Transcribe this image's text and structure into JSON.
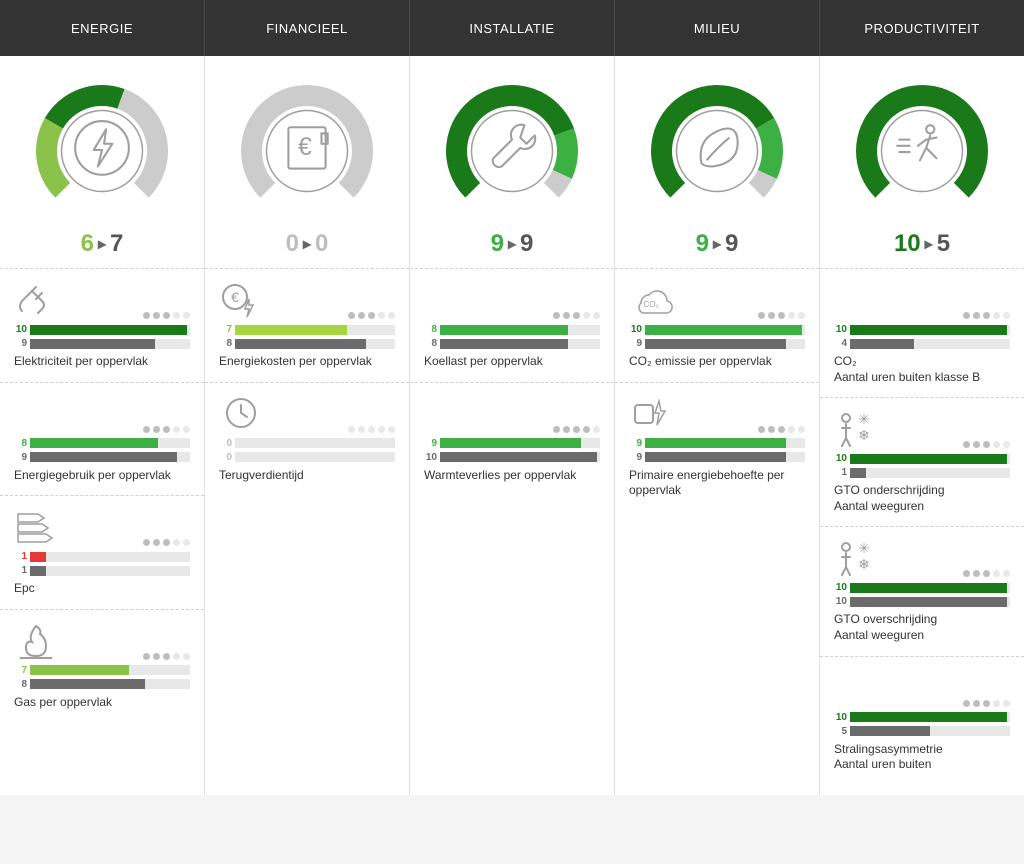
{
  "palette": {
    "dark_green": "#1a7a1a",
    "green": "#3cb043",
    "light_green": "#8bc34a",
    "lime": "#a5d63f",
    "gray": "#9e9e9e",
    "dark_gray": "#6b6b6b",
    "light_gray": "#cccccc",
    "track": "#e8e8e8",
    "red": "#e53935",
    "text_green": "#3cb043",
    "text_gray": "#9e9e9e",
    "text_dark": "#555555"
  },
  "columns": [
    {
      "title": "ENERGIE",
      "icon": "bolt-circle",
      "gauge": {
        "segments": [
          {
            "color": "#8bc34a",
            "start": 225,
            "end": 300
          },
          {
            "color": "#1a7a1a",
            "start": 300,
            "end": 380
          },
          {
            "color": "#cccccc",
            "start": 20,
            "end": 135
          }
        ]
      },
      "score_a": "6",
      "score_a_color": "#8bc34a",
      "score_b": "7",
      "score_b_color": "#555555",
      "metrics": [
        {
          "icon": "plug",
          "dots_fill": 3,
          "a": "10",
          "a_color": "#1a7a1a",
          "a_fill": 0.98,
          "a_bg": "#1a7a1a",
          "b": "9",
          "b_color": "#6b6b6b",
          "b_fill": 0.78,
          "b_bg": "#6b6b6b",
          "label": "Elektriciteit per oppervlak"
        },
        {
          "icon": "none",
          "dots_fill": 3,
          "a": "8",
          "a_color": "#3cb043",
          "a_fill": 0.8,
          "a_bg": "#3cb043",
          "b": "9",
          "b_color": "#6b6b6b",
          "b_fill": 0.92,
          "b_bg": "#6b6b6b",
          "label": "Energiegebruik per oppervlak"
        },
        {
          "icon": "energy-label",
          "dots_fill": 3,
          "a": "1",
          "a_color": "#e53935",
          "a_fill": 0.1,
          "a_bg": "#e53935",
          "b": "1",
          "b_color": "#6b6b6b",
          "b_fill": 0.1,
          "b_bg": "#6b6b6b",
          "label": "Epc"
        },
        {
          "icon": "flame",
          "dots_fill": 3,
          "a": "7",
          "a_color": "#8bc34a",
          "a_fill": 0.62,
          "a_bg": "#8bc34a",
          "b": "8",
          "b_color": "#6b6b6b",
          "b_fill": 0.72,
          "b_bg": "#6b6b6b",
          "label": "Gas per oppervlak"
        }
      ]
    },
    {
      "title": "FINANCIEEL",
      "icon": "euro-box",
      "gauge": {
        "segments": [
          {
            "color": "#cccccc",
            "start": 225,
            "end": 495
          }
        ]
      },
      "score_a": "0",
      "score_a_color": "#bdbdbd",
      "score_b": "0",
      "score_b_color": "#bdbdbd",
      "metrics": [
        {
          "icon": "euro-bolt",
          "dots_fill": 3,
          "a": "7",
          "a_color": "#8bc34a",
          "a_fill": 0.7,
          "a_bg": "#a5d63f",
          "b": "8",
          "b_color": "#6b6b6b",
          "b_fill": 0.82,
          "b_bg": "#6b6b6b",
          "label": "Energiekosten per oppervlak"
        },
        {
          "icon": "clock",
          "dots_fill": 0,
          "a": "0",
          "a_color": "#bdbdbd",
          "a_fill": 0.0,
          "a_bg": "#cccccc",
          "b": "0",
          "b_color": "#bdbdbd",
          "b_fill": 0.0,
          "b_bg": "#cccccc",
          "label": "Terugverdientijd"
        }
      ]
    },
    {
      "title": "INSTALLATIE",
      "icon": "wrench",
      "gauge": {
        "segments": [
          {
            "color": "#1a7a1a",
            "start": 225,
            "end": 430
          },
          {
            "color": "#3cb043",
            "start": 430,
            "end": 475
          },
          {
            "color": "#cccccc",
            "start": 115,
            "end": 135
          }
        ]
      },
      "score_a": "9",
      "score_a_color": "#3cb043",
      "score_b": "9",
      "score_b_color": "#555555",
      "metrics": [
        {
          "icon": "none",
          "dots_fill": 3,
          "a": "8",
          "a_color": "#3cb043",
          "a_fill": 0.8,
          "a_bg": "#3cb043",
          "b": "8",
          "b_color": "#6b6b6b",
          "b_fill": 0.8,
          "b_bg": "#6b6b6b",
          "label": "Koellast per oppervlak"
        },
        {
          "icon": "none",
          "dots_fill": 4,
          "a": "9",
          "a_color": "#3cb043",
          "a_fill": 0.88,
          "a_bg": "#3cb043",
          "b": "10",
          "b_color": "#6b6b6b",
          "b_fill": 0.98,
          "b_bg": "#6b6b6b",
          "label": "Warmteverlies per oppervlak"
        }
      ]
    },
    {
      "title": "MILIEU",
      "icon": "leaf",
      "gauge": {
        "segments": [
          {
            "color": "#1a7a1a",
            "start": 225,
            "end": 420
          },
          {
            "color": "#3cb043",
            "start": 420,
            "end": 475
          },
          {
            "color": "#cccccc",
            "start": 115,
            "end": 135
          }
        ]
      },
      "score_a": "9",
      "score_a_color": "#3cb043",
      "score_b": "9",
      "score_b_color": "#555555",
      "metrics": [
        {
          "icon": "co2",
          "dots_fill": 3,
          "a": "10",
          "a_color": "#1a7a1a",
          "a_fill": 0.98,
          "a_bg": "#3cb043",
          "b": "9",
          "b_color": "#6b6b6b",
          "b_fill": 0.88,
          "b_bg": "#6b6b6b",
          "label": "CO₂ emissie per oppervlak"
        },
        {
          "icon": "bolt-plug",
          "dots_fill": 3,
          "a": "9",
          "a_color": "#3cb043",
          "a_fill": 0.88,
          "a_bg": "#3cb043",
          "b": "9",
          "b_color": "#6b6b6b",
          "b_fill": 0.88,
          "b_bg": "#6b6b6b",
          "label": "Primaire energiebehoefte per oppervlak"
        }
      ]
    },
    {
      "title": "PRODUCTIVITEIT",
      "icon": "walk",
      "gauge": {
        "segments": [
          {
            "color": "#1a7a1a",
            "start": 225,
            "end": 495
          }
        ]
      },
      "score_a": "10",
      "score_a_color": "#1a7a1a",
      "score_b": "5",
      "score_b_color": "#555555",
      "metrics": [
        {
          "icon": "none",
          "dots_fill": 3,
          "a": "10",
          "a_color": "#1a7a1a",
          "a_fill": 0.98,
          "a_bg": "#1a7a1a",
          "b": "4",
          "b_color": "#6b6b6b",
          "b_fill": 0.4,
          "b_bg": "#6b6b6b",
          "label": "CO₂\nAantal uren buiten klasse B"
        },
        {
          "icon": "person-sun",
          "dots_fill": 3,
          "a": "10",
          "a_color": "#1a7a1a",
          "a_fill": 0.98,
          "a_bg": "#1a7a1a",
          "b": "1",
          "b_color": "#6b6b6b",
          "b_fill": 0.1,
          "b_bg": "#6b6b6b",
          "label": "GTO onderschrijding\nAantal weeguren"
        },
        {
          "icon": "person-sun",
          "dots_fill": 3,
          "a": "10",
          "a_color": "#1a7a1a",
          "a_fill": 0.98,
          "a_bg": "#1a7a1a",
          "b": "10",
          "b_color": "#6b6b6b",
          "b_fill": 0.98,
          "b_bg": "#6b6b6b",
          "label": "GTO overschrijding\nAantal weeguren"
        },
        {
          "icon": "none",
          "dots_fill": 3,
          "a": "10",
          "a_color": "#1a7a1a",
          "a_fill": 0.98,
          "a_bg": "#1a7a1a",
          "b": "5",
          "b_color": "#6b6b6b",
          "b_fill": 0.5,
          "b_bg": "#6b6b6b",
          "label": "Stralingsasymmetrie\nAantal uren buiten"
        }
      ]
    }
  ]
}
